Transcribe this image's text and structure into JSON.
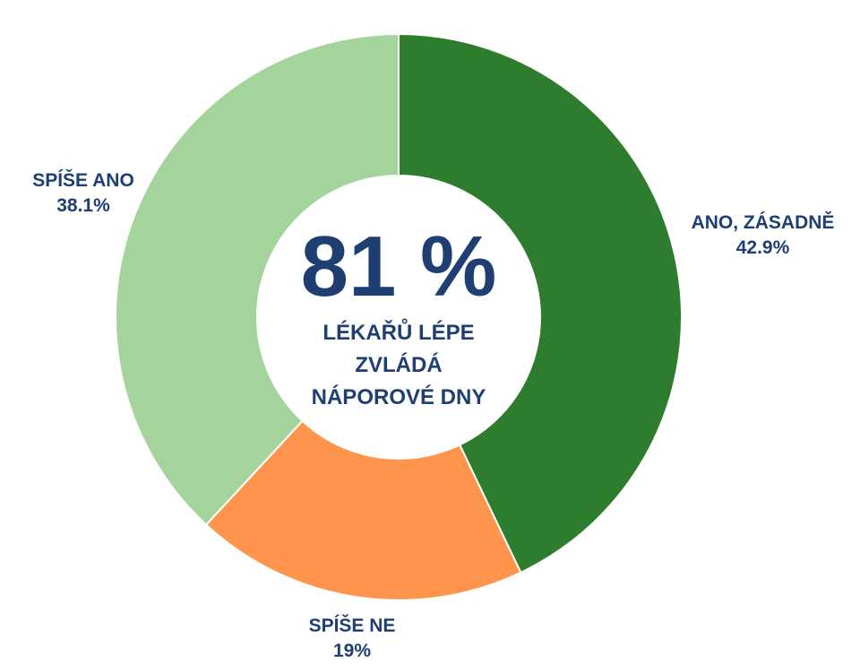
{
  "chart_data": {
    "type": "pie",
    "donut": true,
    "categories": [
      "ANO, ZÁSADNĚ",
      "SPÍŠE NE",
      "SPÍŠE ANO"
    ],
    "values": [
      42.9,
      19,
      38.1
    ],
    "value_labels": [
      "42.9%",
      "19%",
      "38.1%"
    ],
    "colors": [
      "#2e7d2e",
      "#ff944d",
      "#a4d49c"
    ],
    "center_value": "81 %",
    "center_text": [
      "LÉKAŘŮ LÉPE",
      "ZVLÁDÁ",
      "NÁPOROVÉ DNY"
    ]
  }
}
